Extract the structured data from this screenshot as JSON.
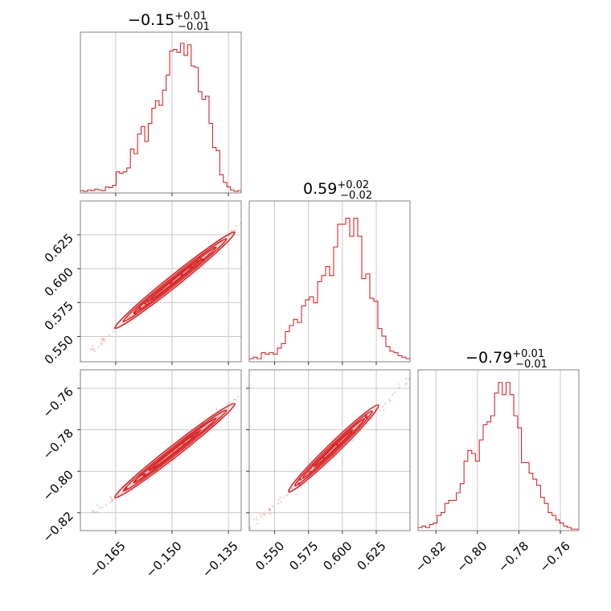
{
  "chart_data": {
    "type": "corner",
    "color": "#d62728",
    "grid": true,
    "parameters": [
      {
        "title": {
          "value": "−0.15",
          "upper": "+0.01",
          "lower": "−0.01"
        },
        "range": [
          -0.1744,
          -0.1316
        ],
        "ticks": [
          -0.165,
          -0.15,
          -0.135
        ],
        "tick_labels": [
          "−0.165",
          "−0.150",
          "−0.135"
        ],
        "hist": [
          0.015,
          0.01,
          0.02,
          0.015,
          0.025,
          0.02,
          0.015,
          0.04,
          0.035,
          0.05,
          0.14,
          0.13,
          0.14,
          0.165,
          0.29,
          0.26,
          0.39,
          0.44,
          0.34,
          0.46,
          0.56,
          0.61,
          0.58,
          0.68,
          0.78,
          0.94,
          0.95,
          0.93,
          0.99,
          0.91,
          0.98,
          0.84,
          0.83,
          0.67,
          0.62,
          0.64,
          0.46,
          0.3,
          0.28,
          0.12,
          0.07,
          0.04,
          0.02,
          0.01,
          0.015
        ]
      },
      {
        "title": {
          "value": "0.59",
          "upper": "+0.02",
          "lower": "−0.02"
        },
        "range": [
          0.5313,
          0.6499
        ],
        "ticks": [
          0.55,
          0.575,
          0.6,
          0.625
        ],
        "tick_labels": [
          "0.550",
          "0.575",
          "0.600",
          "0.625"
        ],
        "hist": [
          0.02,
          0.03,
          0.02,
          0.06,
          0.05,
          0.06,
          0.05,
          0.09,
          0.12,
          0.2,
          0.24,
          0.28,
          0.26,
          0.37,
          0.41,
          0.43,
          0.39,
          0.53,
          0.57,
          0.63,
          0.57,
          0.76,
          0.91,
          0.91,
          0.95,
          0.83,
          0.95,
          0.83,
          0.55,
          0.58,
          0.42,
          0.4,
          0.22,
          0.17,
          0.1,
          0.07,
          0.06,
          0.04,
          0.03,
          0.02
        ]
      },
      {
        "title": {
          "value": "−0.79",
          "upper": "+0.01",
          "lower": "−0.01"
        },
        "range": [
          -0.8286,
          -0.7511
        ],
        "ticks": [
          -0.82,
          -0.8,
          -0.78,
          -0.76
        ],
        "tick_labels": [
          "−0.82",
          "−0.80",
          "−0.78",
          "−0.76"
        ],
        "hist": [
          0.02,
          0.03,
          0.02,
          0.04,
          0.05,
          0.1,
          0.12,
          0.18,
          0.2,
          0.2,
          0.25,
          0.31,
          0.46,
          0.53,
          0.51,
          0.46,
          0.6,
          0.7,
          0.72,
          0.76,
          0.91,
          0.98,
          0.9,
          0.98,
          0.9,
          0.76,
          0.68,
          0.45,
          0.45,
          0.38,
          0.34,
          0.3,
          0.22,
          0.18,
          0.12,
          0.1,
          0.07,
          0.05,
          0.03,
          0.02,
          0.01,
          0.01
        ]
      }
    ],
    "pairs": [
      {
        "x": 0,
        "y": 1,
        "relation": [
          [
            -0.168,
            0.548
          ],
          [
            -0.15,
            0.589
          ],
          [
            -0.1345,
            0.626
          ]
        ],
        "core": [
          [
            -0.163,
            0.561
          ],
          [
            -0.1355,
            0.622
          ]
        ]
      },
      {
        "x": 0,
        "y": 2,
        "relation": [
          [
            -0.168,
            -0.8162
          ],
          [
            -0.15,
            -0.7935
          ],
          [
            -0.1345,
            -0.7668
          ]
        ],
        "core": [
          [
            -0.163,
            -0.8095
          ],
          [
            -0.1355,
            -0.7705
          ]
        ]
      },
      {
        "x": 1,
        "y": 2,
        "relation": [
          [
            0.533,
            -0.826
          ],
          [
            0.59,
            -0.7935
          ],
          [
            0.645,
            -0.7585
          ]
        ],
        "core": [
          [
            0.565,
            -0.807
          ],
          [
            0.622,
            -0.771
          ]
        ]
      }
    ]
  }
}
